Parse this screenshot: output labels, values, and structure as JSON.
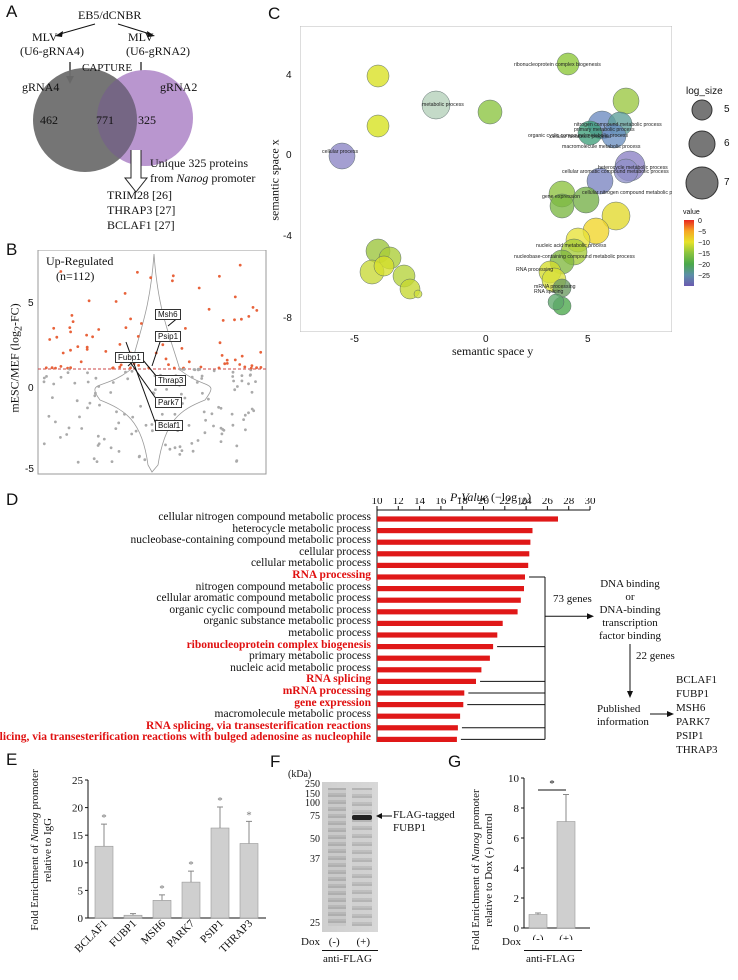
{
  "panels": {
    "A": "A",
    "B": "B",
    "C": "C",
    "D": "D",
    "E": "E",
    "F": "F",
    "G": "G"
  },
  "panelA": {
    "source": "EB5/dCNBR",
    "mlv_left": "MLV",
    "mlv_left_grna": "(U6-gRNA4)",
    "mlv_right": "MLV",
    "mlv_right_grna": "(U6-gRNA2)",
    "capture": "CAPTURE",
    "grna4": "gRNA4",
    "grna2": "gRNA2",
    "venn_left": "462",
    "venn_overlap": "771",
    "venn_right": "325",
    "unique_line1": "Unique 325 proteins",
    "unique_line2_pre": "from ",
    "unique_line2_em": "Nanog",
    "unique_line2_post": " promoter",
    "refs": [
      "TRIM28 [26]",
      "THRAP3 [27]",
      "BCLAF1 [27]"
    ]
  },
  "panelB": {
    "title": "Up-Regulated",
    "count": "(n=112)",
    "ylabel_pre": "mESC/MEF (log",
    "ylabel_sub": "2",
    "ylabel_post": "-FC)",
    "yticks": [
      "5",
      "0",
      "-5"
    ],
    "genes": [
      "Msh6",
      "Psip1",
      "Fubp1",
      "Thrap3",
      "Park7",
      "Bclaf1"
    ]
  },
  "panelC": {
    "xlabel": "semantic space y",
    "ylabel": "semantic space x",
    "xticks": [
      "-5",
      "0",
      "5"
    ],
    "yticks": [
      "4",
      "0",
      "-4",
      "-8"
    ],
    "legend_size_title": "log_size",
    "legend_sizes": [
      "5",
      "6",
      "7"
    ],
    "legend_value_title": "value",
    "legend_value_ticks": [
      "0",
      "−5",
      "−10",
      "−15",
      "−20",
      "−25"
    ],
    "bubble_labels": [
      "ribonucleoprotein complex biogenesis",
      "metabolic process",
      "cellular process",
      "nitrogen compound metabolic process",
      "primary metabolic process",
      "organic cyclic compound metabolic process",
      "cellular metabolic process",
      "macromolecule metabolic process",
      "heterocycle metabolic process",
      "cellular aromatic compound metabolic process",
      "cellular nitrogen compound metabolic process",
      "gene expression",
      "nucleic acid metabolic process",
      "nucleobase-containing compound metabolic process",
      "RNA processing",
      "mRNA processing",
      "RNA splicing"
    ]
  },
  "panelD": {
    "axis_title_em": "P-Value",
    "axis_title_rest": " (−log",
    "axis_title_sub": "10",
    "axis_title_end": ")",
    "ticks": [
      "10",
      "12",
      "14",
      "16",
      "18",
      "20",
      "22",
      "24",
      "26",
      "28",
      "30"
    ],
    "genes73": "73 genes",
    "dna_binding": [
      "DNA binding",
      "or",
      "DNA-binding",
      "transcription",
      "factor binding"
    ],
    "genes22": "22 genes",
    "published": [
      "Published",
      "information"
    ],
    "final_list": [
      "BCLAF1",
      "FUBP1",
      "MSH6",
      "PARK7",
      "PSIP1",
      "THRAP3"
    ]
  },
  "chart_data": [
    {
      "type": "bar",
      "panel": "D",
      "orientation": "horizontal",
      "xlabel": "P-Value (−log10)",
      "xlim": [
        10,
        30
      ],
      "categories": [
        "cellular nitrogen compound metabolic process",
        "heterocycle metabolic process",
        "nucleobase-containing compound metabolic process",
        "cellular process",
        "cellular metabolic process",
        "RNA processing",
        "nitrogen compound metabolic process",
        "cellular aromatic compound metabolic process",
        "organic cyclic compound metabolic process",
        "organic substance metabolic process",
        "metabolic process",
        "ribonucleoprotein complex biogenesis",
        "primary metabolic process",
        "nucleic acid metabolic process",
        "RNA splicing",
        "mRNA processing",
        "gene expression",
        "macromolecule metabolic process",
        "RNA splicing, via transesterification reactions",
        "RNA splicing, via transesterification reactions with bulged adenosine as nucleophile"
      ],
      "highlighted": [
        "RNA processing",
        "ribonucleoprotein complex biogenesis",
        "RNA splicing",
        "mRNA processing",
        "gene expression",
        "RNA splicing, via transesterification reactions",
        "RNA splicing, via transesterification reactions with bulged adenosine as nucleophile"
      ],
      "values": [
        27.0,
        24.6,
        24.4,
        24.3,
        24.2,
        23.9,
        23.8,
        23.5,
        23.2,
        21.8,
        21.3,
        20.9,
        20.6,
        19.8,
        19.3,
        18.2,
        18.1,
        17.8,
        17.6,
        17.5
      ]
    },
    {
      "type": "bar",
      "panel": "E",
      "title": "",
      "ylabel": "Fold Enrichment of Nanog promoter relative to IgG",
      "ylim": [
        0,
        25
      ],
      "yticks": [
        "0",
        "5",
        "10",
        "15",
        "20",
        "25"
      ],
      "categories": [
        "BCLAF1",
        "FUBP1",
        "MSH6",
        "PARK7",
        "PSIP1",
        "THRAP3"
      ],
      "values": [
        13.0,
        0.5,
        3.2,
        6.5,
        16.3,
        13.5
      ],
      "errors": [
        4.0,
        0.3,
        1.0,
        2.0,
        3.8,
        4.0
      ],
      "significant": [
        "*",
        "",
        "*",
        "*",
        "*",
        "*"
      ]
    },
    {
      "type": "bar",
      "panel": "G",
      "ylabel": "Fold Enrichment of Nanog promoter relative to Dox (-) control",
      "ylim": [
        0,
        10
      ],
      "yticks": [
        "0",
        "2",
        "4",
        "6",
        "8",
        "10"
      ],
      "categories": [
        "(-)",
        "(+)"
      ],
      "values": [
        0.9,
        7.1
      ],
      "errors": [
        0.1,
        1.8
      ],
      "significance": "*"
    }
  ],
  "panelE": {
    "ylabel1_pre": "Fold Enrichment of ",
    "ylabel1_em": "Nanog",
    "ylabel1_post": " promoter",
    "ylabel2": "relative to IgG"
  },
  "panelF": {
    "kda": "(kDa)",
    "markers": [
      "250",
      "150",
      "100",
      "75",
      "50",
      "37",
      "25"
    ],
    "arrow_label1": "FLAG-tagged",
    "arrow_label2": "FUBP1",
    "dox": "Dox",
    "minus": "(-)",
    "plus": "(+)",
    "antibody": "anti-FLAG"
  },
  "panelG": {
    "ylabel1_pre": "Fold Enrichment of ",
    "ylabel1_em": "Nanog",
    "ylabel1_post": " promoter",
    "ylabel2": "relative to Dox (-) control",
    "dox": "Dox",
    "antibody": "anti-FLAG"
  }
}
